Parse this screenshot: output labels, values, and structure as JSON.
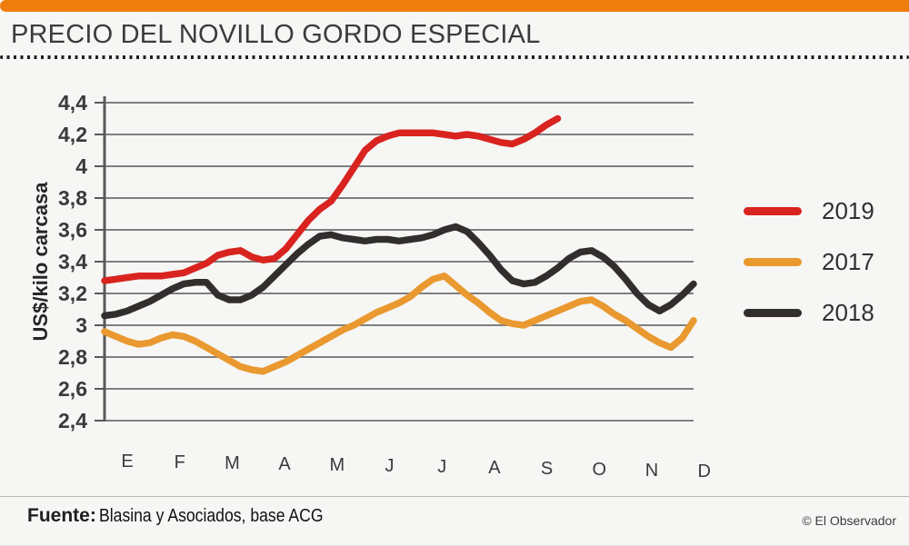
{
  "header": {
    "title": "PRECIO DEL NOVILLO GORDO ESPECIAL"
  },
  "footer": {
    "source_label": "Fuente:",
    "source_value": "Blasina y Asociados, base ACG",
    "credit": "© El Observador"
  },
  "colors": {
    "accent_bar": "#EE7D0E",
    "series_2019": "#D9231F",
    "series_2017": "#E9992F",
    "series_2018": "#332E2E",
    "gridline": "#7F7F7F",
    "axis": "#595959",
    "text": "#3A3A3A"
  },
  "legend": {
    "position": "right",
    "items": [
      {
        "label": "2019",
        "color": "#D9231F"
      },
      {
        "label": "2017",
        "color": "#E9992F"
      },
      {
        "label": "2018",
        "color": "#332E2E"
      }
    ]
  },
  "chart_data": {
    "type": "line",
    "title": "PRECIO DEL NOVILLO GORDO ESPECIAL",
    "ylabel": "US$/kilo carcasa",
    "xlabel": "",
    "ylim": [
      2.4,
      4.4
    ],
    "ytick_step": 0.2,
    "ytick_values": [
      4.4,
      4.2,
      4.0,
      3.8,
      3.6,
      3.4,
      3.2,
      3.0,
      2.8,
      2.6,
      2.4
    ],
    "ytick_labels": [
      "4,4",
      "4,2",
      "4",
      "3,8",
      "3,6",
      "3,4",
      "3,2",
      "3",
      "2,8",
      "2,6",
      "2,4"
    ],
    "x_unit": "weeks",
    "x_range": [
      0,
      52
    ],
    "x_tick_labels": [
      "E",
      "F",
      "M",
      "A",
      "M",
      "J",
      "J",
      "A",
      "S",
      "O",
      "N",
      "D"
    ],
    "grid": "horizontal",
    "legend_position": "right",
    "series": [
      {
        "name": "2017",
        "color": "#E9992F",
        "points": [
          [
            0,
            2.96
          ],
          [
            1,
            2.93
          ],
          [
            2,
            2.9
          ],
          [
            3,
            2.88
          ],
          [
            4,
            2.89
          ],
          [
            5,
            2.92
          ],
          [
            6,
            2.94
          ],
          [
            7,
            2.93
          ],
          [
            8,
            2.9
          ],
          [
            9,
            2.86
          ],
          [
            10,
            2.82
          ],
          [
            11,
            2.78
          ],
          [
            12,
            2.74
          ],
          [
            13,
            2.72
          ],
          [
            14,
            2.71
          ],
          [
            15,
            2.74
          ],
          [
            16,
            2.77
          ],
          [
            17,
            2.81
          ],
          [
            18,
            2.85
          ],
          [
            19,
            2.89
          ],
          [
            20,
            2.93
          ],
          [
            21,
            2.97
          ],
          [
            22,
            3.0
          ],
          [
            23,
            3.04
          ],
          [
            24,
            3.08
          ],
          [
            25,
            3.11
          ],
          [
            26,
            3.14
          ],
          [
            27,
            3.18
          ],
          [
            28,
            3.24
          ],
          [
            29,
            3.29
          ],
          [
            30,
            3.31
          ],
          [
            31,
            3.25
          ],
          [
            32,
            3.19
          ],
          [
            33,
            3.14
          ],
          [
            34,
            3.08
          ],
          [
            35,
            3.03
          ],
          [
            36,
            3.01
          ],
          [
            37,
            3.0
          ],
          [
            38,
            3.03
          ],
          [
            39,
            3.06
          ],
          [
            40,
            3.09
          ],
          [
            41,
            3.12
          ],
          [
            42,
            3.15
          ],
          [
            43,
            3.16
          ],
          [
            44,
            3.12
          ],
          [
            45,
            3.07
          ],
          [
            46,
            3.03
          ],
          [
            47,
            2.98
          ],
          [
            48,
            2.93
          ],
          [
            49,
            2.89
          ],
          [
            50,
            2.86
          ],
          [
            51,
            2.92
          ],
          [
            52,
            3.03
          ]
        ]
      },
      {
        "name": "2018",
        "color": "#332E2E",
        "points": [
          [
            0,
            3.06
          ],
          [
            1,
            3.07
          ],
          [
            2,
            3.09
          ],
          [
            3,
            3.12
          ],
          [
            4,
            3.15
          ],
          [
            5,
            3.19
          ],
          [
            6,
            3.23
          ],
          [
            7,
            3.26
          ],
          [
            8,
            3.27
          ],
          [
            9,
            3.27
          ],
          [
            10,
            3.19
          ],
          [
            11,
            3.16
          ],
          [
            12,
            3.16
          ],
          [
            13,
            3.19
          ],
          [
            14,
            3.24
          ],
          [
            15,
            3.31
          ],
          [
            16,
            3.38
          ],
          [
            17,
            3.45
          ],
          [
            18,
            3.51
          ],
          [
            19,
            3.56
          ],
          [
            20,
            3.57
          ],
          [
            21,
            3.55
          ],
          [
            22,
            3.54
          ],
          [
            23,
            3.53
          ],
          [
            24,
            3.54
          ],
          [
            25,
            3.54
          ],
          [
            26,
            3.53
          ],
          [
            27,
            3.54
          ],
          [
            28,
            3.55
          ],
          [
            29,
            3.57
          ],
          [
            30,
            3.6
          ],
          [
            31,
            3.62
          ],
          [
            32,
            3.59
          ],
          [
            33,
            3.52
          ],
          [
            34,
            3.44
          ],
          [
            35,
            3.35
          ],
          [
            36,
            3.28
          ],
          [
            37,
            3.26
          ],
          [
            38,
            3.27
          ],
          [
            39,
            3.31
          ],
          [
            40,
            3.36
          ],
          [
            41,
            3.42
          ],
          [
            42,
            3.46
          ],
          [
            43,
            3.47
          ],
          [
            44,
            3.43
          ],
          [
            45,
            3.37
          ],
          [
            46,
            3.29
          ],
          [
            47,
            3.2
          ],
          [
            48,
            3.13
          ],
          [
            49,
            3.09
          ],
          [
            50,
            3.13
          ],
          [
            51,
            3.19
          ],
          [
            52,
            3.26
          ]
        ]
      },
      {
        "name": "2019",
        "color": "#D9231F",
        "points": [
          [
            0,
            3.28
          ],
          [
            1,
            3.29
          ],
          [
            2,
            3.3
          ],
          [
            3,
            3.31
          ],
          [
            4,
            3.31
          ],
          [
            5,
            3.31
          ],
          [
            6,
            3.32
          ],
          [
            7,
            3.33
          ],
          [
            8,
            3.36
          ],
          [
            9,
            3.39
          ],
          [
            10,
            3.44
          ],
          [
            11,
            3.46
          ],
          [
            12,
            3.47
          ],
          [
            13,
            3.43
          ],
          [
            14,
            3.41
          ],
          [
            15,
            3.42
          ],
          [
            16,
            3.48
          ],
          [
            17,
            3.57
          ],
          [
            18,
            3.66
          ],
          [
            19,
            3.73
          ],
          [
            20,
            3.78
          ],
          [
            21,
            3.88
          ],
          [
            22,
            3.99
          ],
          [
            23,
            4.1
          ],
          [
            24,
            4.16
          ],
          [
            25,
            4.19
          ],
          [
            26,
            4.21
          ],
          [
            27,
            4.21
          ],
          [
            28,
            4.21
          ],
          [
            29,
            4.21
          ],
          [
            30,
            4.2
          ],
          [
            31,
            4.19
          ],
          [
            32,
            4.2
          ],
          [
            33,
            4.19
          ],
          [
            34,
            4.17
          ],
          [
            35,
            4.15
          ],
          [
            36,
            4.14
          ],
          [
            37,
            4.17
          ],
          [
            38,
            4.21
          ],
          [
            39,
            4.26
          ],
          [
            40,
            4.3
          ]
        ]
      }
    ]
  }
}
